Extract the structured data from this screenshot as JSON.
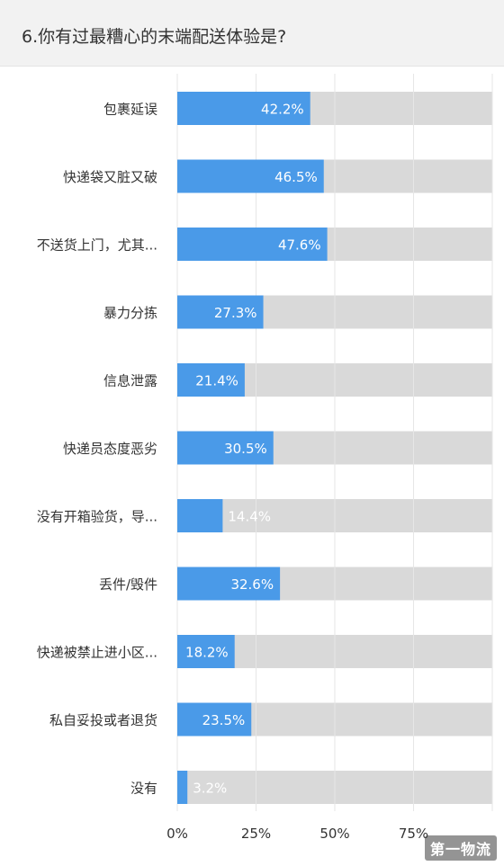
{
  "question": {
    "title": "6.你有过最糟心的末端配送体验是?"
  },
  "colors": {
    "bar_fill": "#4a9ae8",
    "track": "#d9d9d9",
    "label_text": "#333333",
    "value_text_on_bar": "#ffffff",
    "gridline": "#e6e6e6",
    "header_bg": "#f2f2f2"
  },
  "chart_data": {
    "type": "bar",
    "orientation": "horizontal",
    "categories": [
      "包裹延误",
      "快递袋又脏又破",
      "不送货上门，尤其...",
      "暴力分拣",
      "信息泄露",
      "快递员态度恶劣",
      "没有开箱验货，导...",
      "丢件/毁件",
      "快递被禁止进小区...",
      "私自妥投或者退货",
      "没有"
    ],
    "values": [
      42.2,
      46.5,
      47.6,
      27.3,
      21.4,
      30.5,
      14.4,
      32.6,
      18.2,
      23.5,
      3.2
    ],
    "value_labels": [
      "42.2%",
      "46.5%",
      "47.6%",
      "27.3%",
      "21.4%",
      "30.5%",
      "14.4%",
      "32.6%",
      "18.2%",
      "23.5%",
      "3.2%"
    ],
    "xlim": [
      0,
      100
    ],
    "xticks": [
      0,
      25,
      50,
      75
    ],
    "xtick_labels": [
      "0%",
      "25%",
      "50%",
      "75%"
    ],
    "grid": true,
    "title": "6.你有过最糟心的末端配送体验是?",
    "xlabel": "",
    "ylabel": ""
  },
  "watermark": {
    "text": "第一物流"
  }
}
